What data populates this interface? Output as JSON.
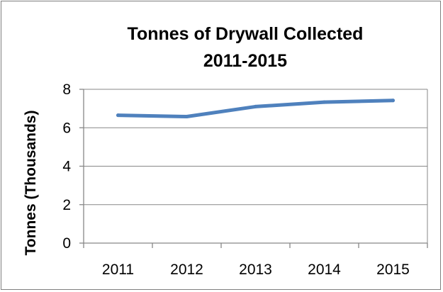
{
  "chart_data": {
    "type": "line",
    "title_lines": [
      "Tonnes of Drywall Collected",
      "2011-2015"
    ],
    "xlabel": "",
    "ylabel": "Tonnes (Thousands)",
    "categories": [
      "2011",
      "2012",
      "2013",
      "2014",
      "2015"
    ],
    "series": [
      {
        "values": [
          6.65,
          6.58,
          7.1,
          7.33,
          7.42
        ]
      }
    ],
    "ylim": [
      0,
      8
    ],
    "yticks": [
      0,
      2,
      4,
      6,
      8
    ],
    "grid": true,
    "legend": "none",
    "series_color": "#4f81bd"
  }
}
